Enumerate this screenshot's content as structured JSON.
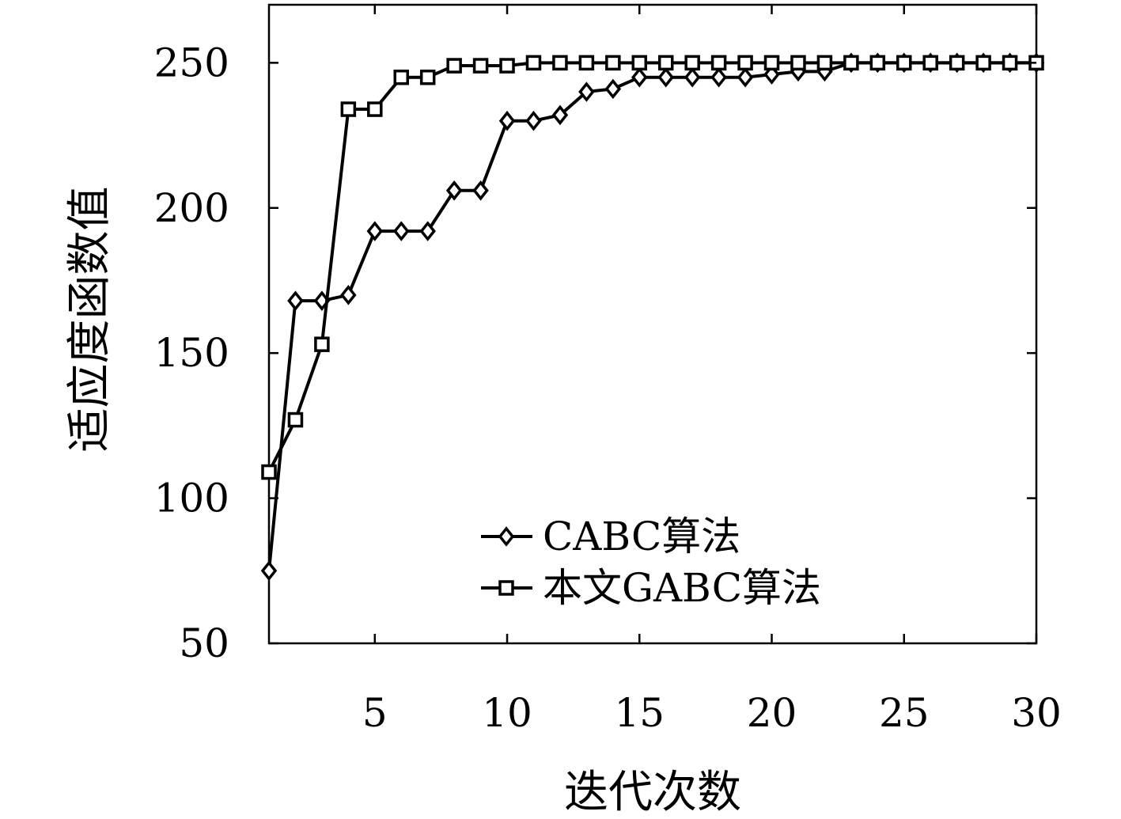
{
  "chart_data": {
    "type": "line",
    "title": "",
    "xlabel": "迭代次数",
    "ylabel": "适应度函数值",
    "xlim": [
      1,
      30
    ],
    "ylim": [
      50,
      270
    ],
    "xticks": [
      5,
      10,
      15,
      20,
      25,
      30
    ],
    "yticks": [
      50,
      100,
      150,
      200,
      250
    ],
    "grid": false,
    "legend_position": "bottom-center",
    "x": [
      1,
      2,
      3,
      4,
      5,
      6,
      7,
      8,
      9,
      10,
      11,
      12,
      13,
      14,
      15,
      16,
      17,
      18,
      19,
      20,
      21,
      22,
      23,
      24,
      25,
      26,
      27,
      28,
      29,
      30
    ],
    "series": [
      {
        "name": "CABC算法",
        "marker": "diamond",
        "color": "#000000",
        "values": [
          75,
          168,
          168,
          170,
          192,
          192,
          192,
          206,
          206,
          230,
          230,
          232,
          240,
          241,
          245,
          245,
          245,
          245,
          245,
          246,
          247,
          247,
          250,
          250,
          250,
          250,
          250,
          250,
          250,
          250
        ]
      },
      {
        "name": "本文GABC算法",
        "marker": "square",
        "color": "#000000",
        "values": [
          109,
          127,
          153,
          234,
          234,
          245,
          245,
          249,
          249,
          249,
          250,
          250,
          250,
          250,
          250,
          250,
          250,
          250,
          250,
          250,
          250,
          250,
          250,
          250,
          250,
          250,
          250,
          250,
          250,
          250
        ]
      }
    ]
  }
}
